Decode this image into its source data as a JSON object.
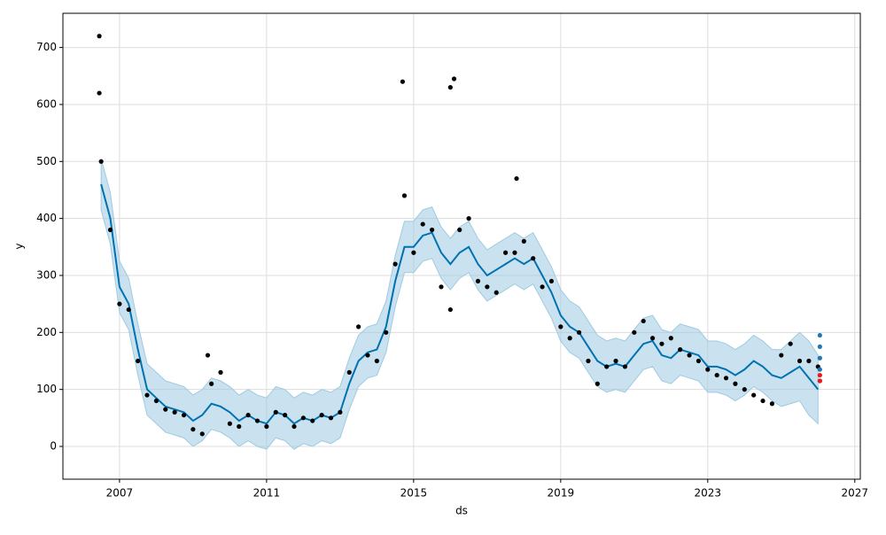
{
  "chart_data": {
    "type": "forecast",
    "xlabel": "ds",
    "ylabel": "y",
    "xlim": [
      2005.46,
      2027.15
    ],
    "ylim": [
      -57.5,
      760
    ],
    "xticks": [
      2007,
      2011,
      2015,
      2019,
      2023,
      2027
    ],
    "yticks": [
      0,
      100,
      200,
      300,
      400,
      500,
      600,
      700
    ],
    "grid": true,
    "series": [
      {
        "type": "band",
        "color": "#9ecae1",
        "x": [
          2006.5,
          2006.75,
          2007.0,
          2007.25,
          2007.5,
          2007.75,
          2008.0,
          2008.25,
          2008.5,
          2008.75,
          2009.0,
          2009.25,
          2009.5,
          2009.75,
          2010.0,
          2010.25,
          2010.5,
          2010.75,
          2011.0,
          2011.25,
          2011.5,
          2011.75,
          2012.0,
          2012.25,
          2012.5,
          2012.75,
          2013.0,
          2013.25,
          2013.5,
          2013.75,
          2014.0,
          2014.25,
          2014.5,
          2014.75,
          2015.0,
          2015.25,
          2015.5,
          2015.75,
          2016.0,
          2016.25,
          2016.5,
          2016.75,
          2017.0,
          2017.25,
          2017.5,
          2017.75,
          2018.0,
          2018.25,
          2018.5,
          2018.75,
          2019.0,
          2019.25,
          2019.5,
          2019.75,
          2020.0,
          2020.25,
          2020.5,
          2020.75,
          2021.0,
          2021.25,
          2021.5,
          2021.75,
          2022.0,
          2022.25,
          2022.5,
          2022.75,
          2023.0,
          2023.25,
          2023.5,
          2023.75,
          2024.0,
          2024.25,
          2024.5,
          2024.75,
          2025.0,
          2025.25,
          2025.5,
          2025.75,
          2026.0
        ],
        "lower": [
          415,
          355,
          235,
          205,
          125,
          55,
          40,
          25,
          20,
          15,
          0,
          10,
          30,
          25,
          15,
          0,
          10,
          0,
          -5,
          15,
          10,
          -5,
          5,
          0,
          10,
          5,
          15,
          65,
          105,
          120,
          125,
          165,
          245,
          305,
          305,
          325,
          330,
          295,
          275,
          295,
          305,
          275,
          255,
          265,
          275,
          285,
          275,
          285,
          255,
          225,
          185,
          165,
          155,
          130,
          105,
          95,
          100,
          95,
          115,
          135,
          140,
          115,
          110,
          125,
          120,
          115,
          95,
          95,
          90,
          80,
          90,
          105,
          95,
          80,
          70,
          75,
          80,
          55,
          40
        ],
        "upper": [
          505,
          445,
          325,
          295,
          215,
          145,
          130,
          115,
          110,
          105,
          90,
          100,
          120,
          115,
          105,
          90,
          100,
          90,
          85,
          105,
          100,
          85,
          95,
          90,
          100,
          95,
          105,
          155,
          195,
          210,
          215,
          255,
          335,
          395,
          395,
          415,
          420,
          385,
          365,
          385,
          395,
          365,
          345,
          355,
          365,
          375,
          365,
          375,
          345,
          315,
          275,
          255,
          245,
          220,
          195,
          185,
          190,
          185,
          205,
          225,
          230,
          205,
          200,
          215,
          210,
          205,
          185,
          185,
          180,
          170,
          180,
          195,
          185,
          170,
          170,
          185,
          200,
          185,
          160
        ]
      },
      {
        "type": "line",
        "color": "#0072b2",
        "x": [
          2006.5,
          2006.75,
          2007.0,
          2007.25,
          2007.5,
          2007.75,
          2008.0,
          2008.25,
          2008.5,
          2008.75,
          2009.0,
          2009.25,
          2009.5,
          2009.75,
          2010.0,
          2010.25,
          2010.5,
          2010.75,
          2011.0,
          2011.25,
          2011.5,
          2011.75,
          2012.0,
          2012.25,
          2012.5,
          2012.75,
          2013.0,
          2013.25,
          2013.5,
          2013.75,
          2014.0,
          2014.25,
          2014.5,
          2014.75,
          2015.0,
          2015.25,
          2015.5,
          2015.75,
          2016.0,
          2016.25,
          2016.5,
          2016.75,
          2017.0,
          2017.25,
          2017.5,
          2017.75,
          2018.0,
          2018.25,
          2018.5,
          2018.75,
          2019.0,
          2019.25,
          2019.5,
          2019.75,
          2020.0,
          2020.25,
          2020.5,
          2020.75,
          2021.0,
          2021.25,
          2021.5,
          2021.75,
          2022.0,
          2022.25,
          2022.5,
          2022.75,
          2023.0,
          2023.25,
          2023.5,
          2023.75,
          2024.0,
          2024.25,
          2024.5,
          2024.75,
          2025.0,
          2025.25,
          2025.5,
          2025.75,
          2026.0
        ],
        "values": [
          460,
          400,
          280,
          250,
          170,
          100,
          85,
          70,
          65,
          60,
          45,
          55,
          75,
          70,
          60,
          45,
          55,
          45,
          40,
          60,
          55,
          40,
          50,
          45,
          55,
          50,
          60,
          110,
          150,
          165,
          170,
          210,
          290,
          350,
          350,
          370,
          375,
          340,
          320,
          340,
          350,
          320,
          300,
          310,
          320,
          330,
          320,
          330,
          300,
          270,
          230,
          210,
          200,
          175,
          150,
          140,
          145,
          140,
          160,
          180,
          185,
          160,
          155,
          170,
          165,
          160,
          140,
          140,
          135,
          125,
          135,
          150,
          140,
          125,
          120,
          130,
          140,
          120,
          100
        ]
      },
      {
        "type": "scatter",
        "color": "#000000",
        "x": [
          2006.5,
          2006.75,
          2007.0,
          2007.25,
          2007.5,
          2007.75,
          2008.0,
          2008.25,
          2008.5,
          2008.75,
          2009.0,
          2009.25,
          2009.5,
          2009.75,
          2010.0,
          2010.25,
          2010.5,
          2010.75,
          2011.0,
          2011.25,
          2011.5,
          2011.75,
          2012.0,
          2012.25,
          2012.5,
          2012.75,
          2013.0,
          2013.25,
          2013.5,
          2013.75,
          2014.0,
          2014.25,
          2014.5,
          2014.75,
          2015.0,
          2015.25,
          2015.5,
          2015.75,
          2016.0,
          2016.25,
          2016.5,
          2016.75,
          2017.0,
          2017.25,
          2017.5,
          2017.75,
          2018.0,
          2018.25,
          2018.5,
          2018.75,
          2019.0,
          2019.25,
          2019.5,
          2019.75,
          2020.0,
          2020.25,
          2020.5,
          2020.75,
          2021.0,
          2021.25,
          2021.5,
          2021.75,
          2022.0,
          2022.25,
          2022.5,
          2022.75,
          2023.0,
          2023.25,
          2023.5,
          2023.75,
          2024.0,
          2024.25,
          2024.5,
          2024.75,
          2025.0,
          2025.25,
          2025.5,
          2025.75,
          2026.0,
          2006.45,
          2006.45,
          2014.7,
          2016.0,
          2016.1,
          2017.8,
          2009.4
        ],
        "values": [
          500,
          380,
          250,
          240,
          150,
          90,
          80,
          65,
          60,
          55,
          30,
          22,
          110,
          130,
          40,
          35,
          55,
          45,
          35,
          60,
          55,
          35,
          50,
          45,
          55,
          50,
          60,
          130,
          210,
          160,
          150,
          200,
          320,
          440,
          340,
          390,
          380,
          280,
          240,
          380,
          400,
          290,
          280,
          270,
          340,
          340,
          360,
          330,
          280,
          290,
          210,
          190,
          200,
          150,
          110,
          140,
          150,
          140,
          200,
          220,
          190,
          180,
          190,
          170,
          160,
          150,
          135,
          125,
          120,
          110,
          100,
          90,
          80,
          75,
          160,
          180,
          150,
          150,
          140,
          720,
          620,
          640,
          630,
          645,
          470,
          160
        ]
      },
      {
        "type": "scatter",
        "color": "#1f77b4",
        "x": [
          2026.05,
          2026.05,
          2026.05,
          2026.05,
          2026.05
        ],
        "values": [
          195,
          175,
          155,
          135,
          115
        ]
      },
      {
        "type": "scatter",
        "color": "#e41a1c",
        "x": [
          2026.05,
          2026.05
        ],
        "values": [
          125,
          115
        ]
      }
    ]
  }
}
